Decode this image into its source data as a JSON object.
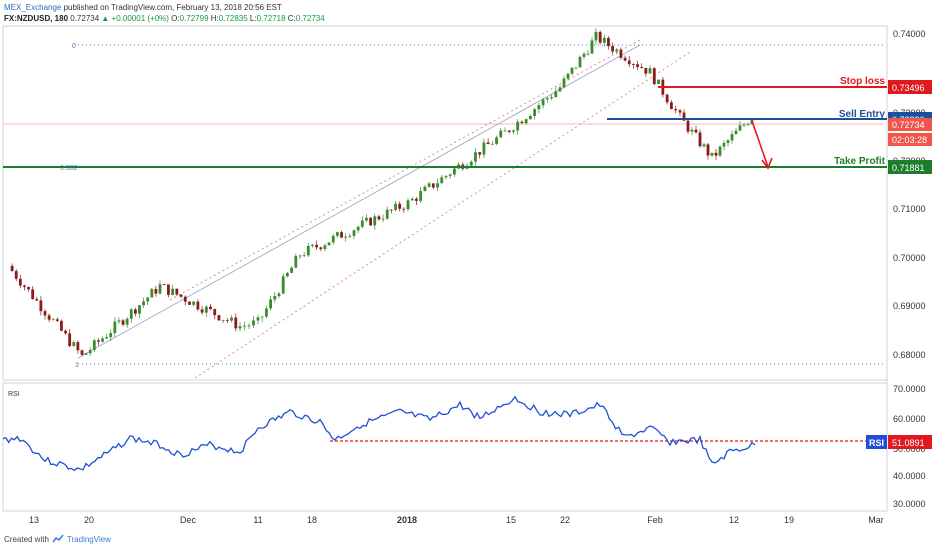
{
  "header": {
    "publisher": "MEX_Exchange",
    "published_text": "published on TradingView.com, February 13, 2018 20:56 EST",
    "symbol": "FX:NZDUSD, 180",
    "last": "0.72734",
    "change": "▲ +0.00001 (+0%)",
    "o_label": "O:",
    "o_val": "0.72799",
    "h_label": "H:",
    "h_val": "0.72835",
    "l_label": "L:",
    "l_val": "0.72718",
    "c_label": "C:",
    "c_val": "0.72734"
  },
  "footer": {
    "created_with": "Created with",
    "brand": "TradingView"
  },
  "colors": {
    "stop": "#e0191e",
    "entry": "#1c4f9c",
    "profit": "#1e7d2a",
    "price_badge": "#f0574a",
    "rsi": "#1f4fd6",
    "rsi_badge": "#1f4fd6",
    "candle_up": "#3b8a2d",
    "candle_down": "#8b1a1a",
    "channel": "#e08a8a",
    "fib": "#4a80c0",
    "trend": "#8fa0c8"
  },
  "chart_data": [
    {
      "type": "candlestick",
      "yticks": [
        "0.74000",
        "0.73000",
        "0.72000",
        "0.71000",
        "0.70000",
        "0.69000",
        "0.68000"
      ],
      "xticks": [
        "13",
        "20",
        "Dec",
        "11",
        "18",
        "2018",
        "15",
        "22",
        "Feb",
        "12",
        "19",
        "Mar"
      ],
      "series": [
        {
          "x": "Nov 13",
          "y": 0.6975
        },
        {
          "x": "Nov 20",
          "y": 0.6795
        },
        {
          "x": "Nov 27",
          "y": 0.6935
        },
        {
          "x": "Dec 4",
          "y": 0.6855
        },
        {
          "x": "Dec 11",
          "y": 0.6862
        },
        {
          "x": "Dec 18",
          "y": 0.6998
        },
        {
          "x": "Jan 1",
          "y": 0.71
        },
        {
          "x": "Jan 15",
          "y": 0.724
        },
        {
          "x": "Jan 22",
          "y": 0.733
        },
        {
          "x": "Jan 26",
          "y": 0.743
        },
        {
          "x": "Feb 1",
          "y": 0.736
        },
        {
          "x": "Feb 5",
          "y": 0.727
        },
        {
          "x": "Feb 8",
          "y": 0.719
        },
        {
          "x": "Feb 13",
          "y": 0.7273
        }
      ],
      "levels": [
        {
          "label": "Stop loss",
          "value": "0.73496"
        },
        {
          "label": "Sell Entry",
          "value": "0.72880"
        },
        {
          "label": "Take Profit",
          "value": "0.71881"
        }
      ],
      "fib": [
        {
          "label": "0",
          "value": 0.7436
        },
        {
          "label": "0.382",
          "value": 0.7188
        },
        {
          "label": "1",
          "value": 0.6783
        }
      ],
      "current_price": "0.72734",
      "countdown": "02:03:28"
    },
    {
      "type": "line",
      "title": "RSI",
      "yticks": [
        "70.0000",
        "60.0000",
        "50.0000",
        "40.0000",
        "30.0000"
      ],
      "ylim": [
        30,
        70
      ],
      "current_value": "51.0891",
      "badge": "RSI",
      "horizontal_level": 51.1
    }
  ]
}
